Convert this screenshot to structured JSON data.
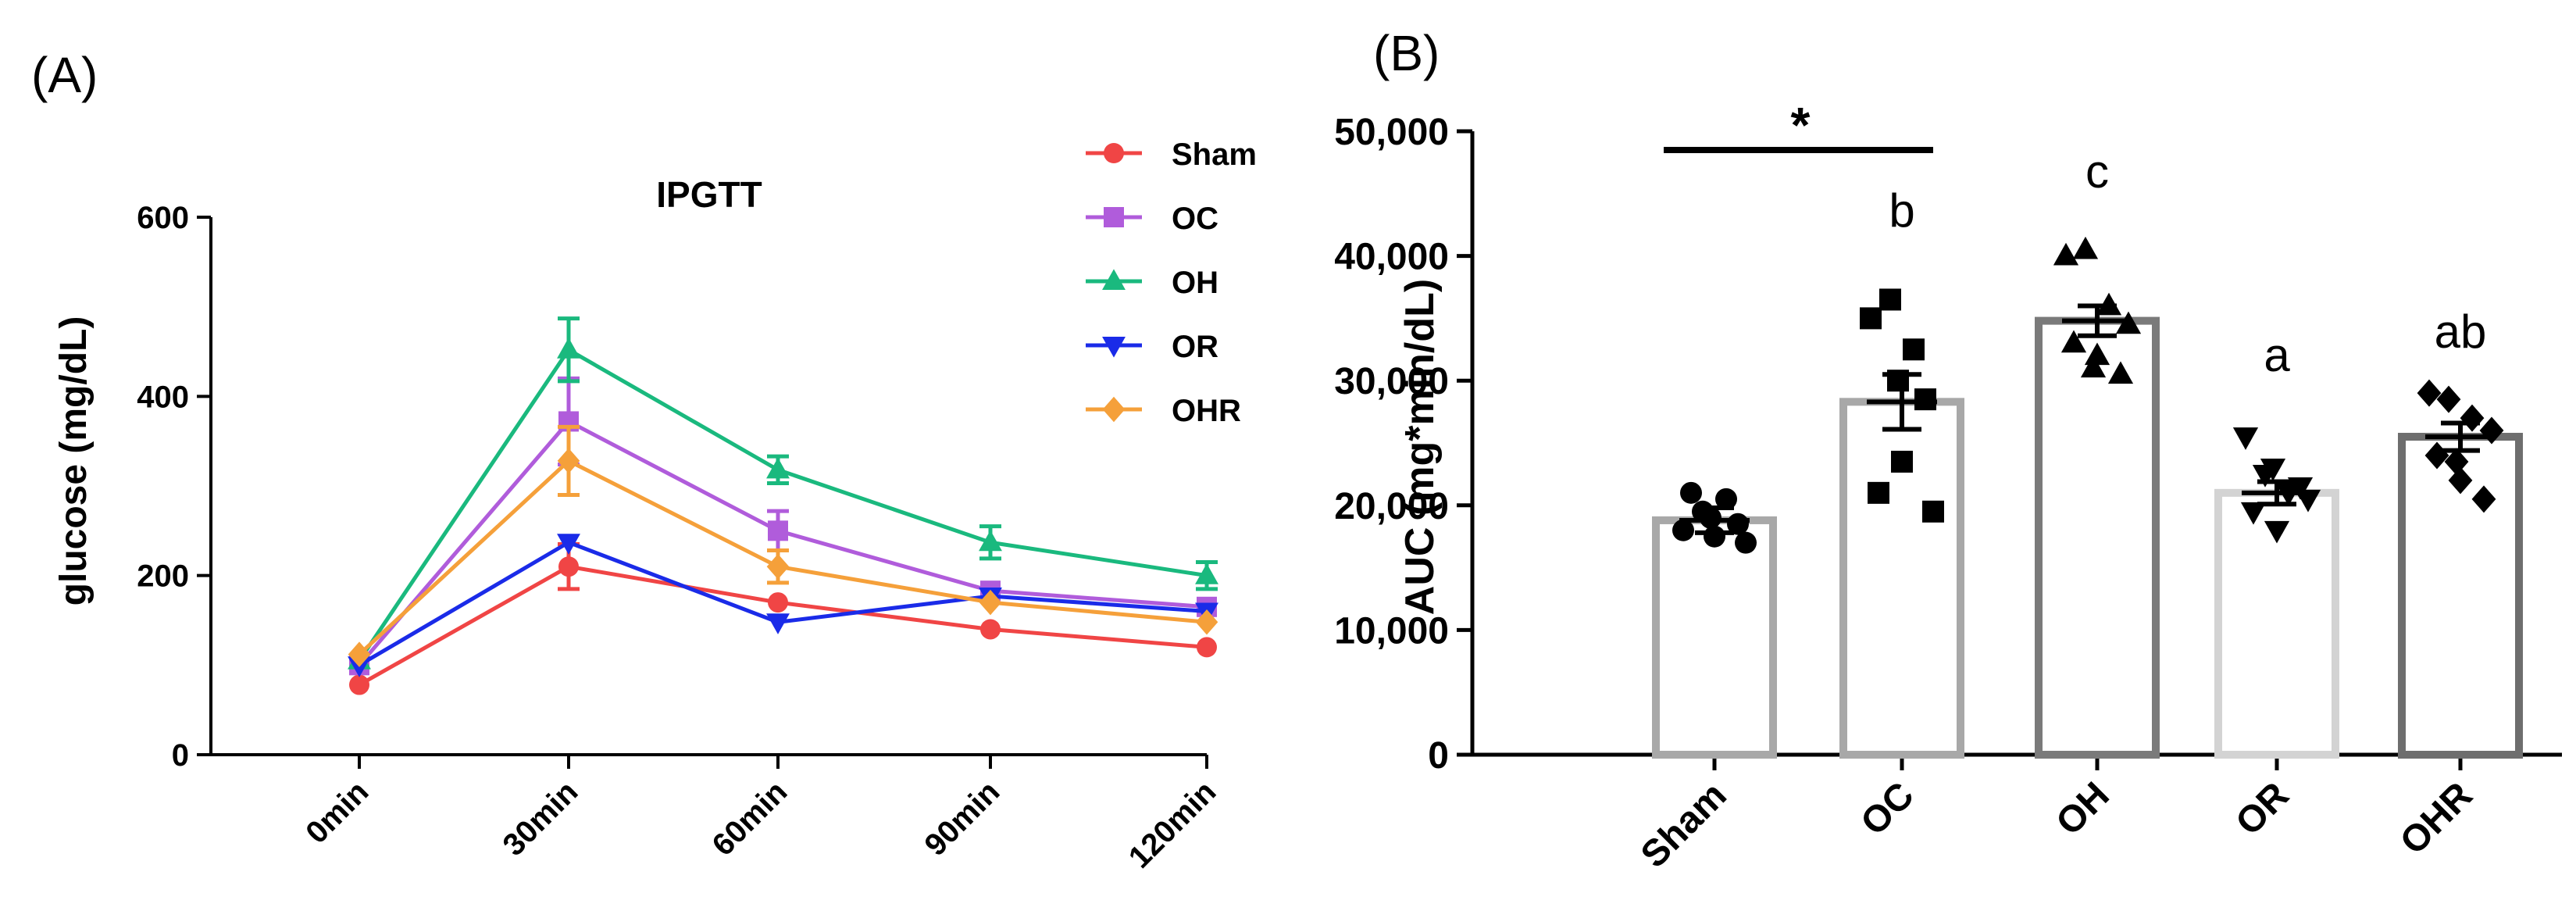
{
  "chart_data": [
    {
      "type": "line",
      "panel_label": "(A)",
      "title": "IPGTT",
      "xlabel": "",
      "ylabel": "glucose (mg/dL)",
      "categories": [
        "0min",
        "30min",
        "60min",
        "90min",
        "120min"
      ],
      "ylim": [
        0,
        600
      ],
      "yticks": [
        "0",
        "200",
        "400",
        "600"
      ],
      "legend_position": "top-right",
      "series": [
        {
          "name": "Sham",
          "color": "#F04545",
          "marker": "circle",
          "values": [
            78,
            210,
            170,
            140,
            120
          ],
          "errors": [
            0,
            25,
            0,
            0,
            0
          ]
        },
        {
          "name": "OC",
          "color": "#B05CDB",
          "marker": "square",
          "values": [
            100,
            372,
            250,
            183,
            165
          ],
          "errors": [
            0,
            48,
            22,
            0,
            0
          ]
        },
        {
          "name": "OH",
          "color": "#1AB97E",
          "marker": "triangle-up",
          "values": [
            105,
            452,
            318,
            237,
            200
          ],
          "errors": [
            0,
            35,
            15,
            18,
            15
          ]
        },
        {
          "name": "OR",
          "color": "#1A2BE8",
          "marker": "triangle-down",
          "values": [
            100,
            237,
            148,
            177,
            160
          ],
          "errors": [
            0,
            0,
            0,
            0,
            0
          ]
        },
        {
          "name": "OHR",
          "color": "#F5A03A",
          "marker": "diamond",
          "values": [
            112,
            328,
            210,
            170,
            148
          ],
          "errors": [
            0,
            38,
            18,
            0,
            0
          ]
        }
      ]
    },
    {
      "type": "bar",
      "panel_label": "(B)",
      "title": "",
      "xlabel": "",
      "ylabel": "AUC (mg*min/dL)",
      "categories": [
        "Sham",
        "OC",
        "OH",
        "OR",
        "OHR"
      ],
      "ylim": [
        0,
        50000
      ],
      "yticks": [
        "0",
        "10,000",
        "20,000",
        "30,000",
        "40,000",
        "50,000"
      ],
      "values": [
        18800,
        28300,
        34800,
        21000,
        25500
      ],
      "errors": [
        1000,
        2200,
        1200,
        900,
        1100
      ],
      "bar_colors": [
        "#A8A8A8",
        "#A8A8A8",
        "#7A7A7A",
        "#D3D3D3",
        "#6E6E6E"
      ],
      "markers": [
        "circle",
        "square",
        "triangle-up",
        "triangle-down",
        "diamond"
      ],
      "points": [
        [
          18000,
          19500,
          20500,
          17000,
          21000,
          17500,
          18500,
          19000
        ],
        [
          35000,
          36500,
          32500,
          19500,
          21000,
          23500,
          28500,
          30000
        ],
        [
          40000,
          40500,
          36000,
          34500,
          33000,
          32000,
          30500,
          31000
        ],
        [
          25500,
          22500,
          21000,
          20500,
          19500,
          18000,
          21500,
          23000
        ],
        [
          29000,
          28500,
          27000,
          26000,
          24000,
          22000,
          20500,
          23500
        ]
      ],
      "letters": [
        "",
        "b",
        "c",
        "a",
        "ab"
      ],
      "significance": {
        "label": "*",
        "from": "Sham",
        "to": "OC",
        "level": 48500
      }
    }
  ]
}
